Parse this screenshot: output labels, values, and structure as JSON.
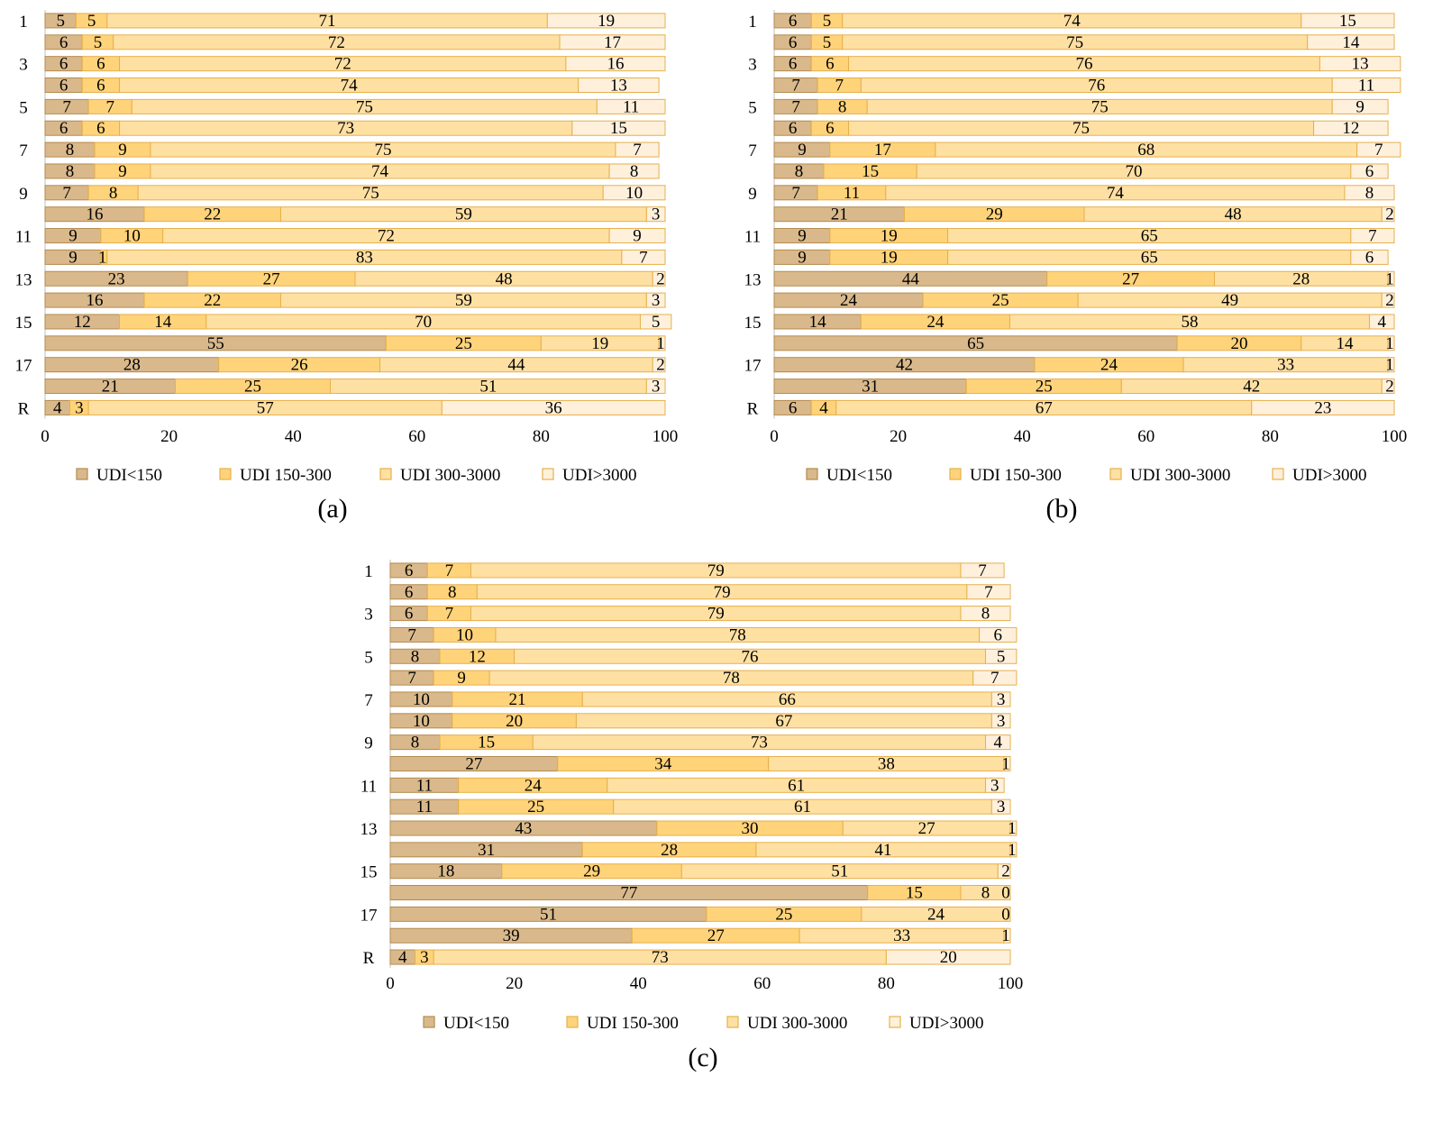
{
  "colors": {
    "UDI<150": "#d9b98b",
    "UDI 150-300": "#ffd37a",
    "UDI 300-3000": "#ffe0a3",
    "UDI>3000": "#fff0dc",
    "bar_stroke": "#e6b04a",
    "bar_stroke_dark": "#b48a4d",
    "axis": "#bfbfbf"
  },
  "chart_data": [
    {
      "type": "bar",
      "orientation": "horizontal",
      "stacked": true,
      "panel_label": "(a)",
      "categories": [
        "1",
        "",
        "3",
        "",
        "5",
        "",
        "7",
        "",
        "9",
        "",
        "11",
        "",
        "13",
        "",
        "15",
        "",
        "17",
        "",
        "R"
      ],
      "xlim": [
        0,
        100
      ],
      "xticks": [
        0,
        20,
        40,
        60,
        80,
        100
      ],
      "legend_position": "bottom",
      "series": [
        {
          "name": "UDI<150",
          "values": [
            5,
            6,
            6,
            6,
            7,
            6,
            8,
            8,
            7,
            16,
            9,
            9,
            23,
            16,
            12,
            55,
            28,
            21,
            4
          ]
        },
        {
          "name": "UDI 150-300",
          "values": [
            5,
            5,
            6,
            6,
            7,
            6,
            9,
            9,
            8,
            22,
            10,
            1,
            27,
            22,
            14,
            25,
            26,
            25,
            3
          ]
        },
        {
          "name": "UDI 300-3000",
          "values": [
            71,
            72,
            72,
            74,
            75,
            73,
            75,
            74,
            75,
            59,
            72,
            83,
            48,
            59,
            70,
            19,
            44,
            51,
            57
          ]
        },
        {
          "name": "UDI>3000",
          "values": [
            19,
            17,
            16,
            13,
            11,
            15,
            7,
            8,
            10,
            3,
            9,
            7,
            2,
            3,
            5,
            1,
            2,
            3,
            36
          ]
        }
      ]
    },
    {
      "type": "bar",
      "orientation": "horizontal",
      "stacked": true,
      "panel_label": "(b)",
      "categories": [
        "1",
        "",
        "3",
        "",
        "5",
        "",
        "7",
        "",
        "9",
        "",
        "11",
        "",
        "13",
        "",
        "15",
        "",
        "17",
        "",
        "R"
      ],
      "xlim": [
        0,
        100
      ],
      "xticks": [
        0,
        20,
        40,
        60,
        80,
        100
      ],
      "legend_position": "bottom",
      "series": [
        {
          "name": "UDI<150",
          "values": [
            6,
            6,
            6,
            7,
            7,
            6,
            9,
            8,
            7,
            21,
            9,
            9,
            44,
            24,
            14,
            65,
            42,
            31,
            6
          ]
        },
        {
          "name": "UDI 150-300",
          "values": [
            5,
            5,
            6,
            7,
            8,
            6,
            17,
            15,
            11,
            29,
            19,
            19,
            27,
            25,
            24,
            20,
            24,
            25,
            4
          ]
        },
        {
          "name": "UDI 300-3000",
          "values": [
            74,
            75,
            76,
            76,
            75,
            75,
            68,
            70,
            74,
            48,
            65,
            65,
            28,
            49,
            58,
            14,
            33,
            42,
            67
          ]
        },
        {
          "name": "UDI>3000",
          "values": [
            15,
            14,
            13,
            11,
            9,
            12,
            7,
            6,
            8,
            2,
            7,
            6,
            1,
            2,
            4,
            1,
            1,
            2,
            23
          ]
        }
      ]
    },
    {
      "type": "bar",
      "orientation": "horizontal",
      "stacked": true,
      "panel_label": "(c)",
      "categories": [
        "1",
        "",
        "3",
        "",
        "5",
        "",
        "7",
        "",
        "9",
        "",
        "11",
        "",
        "13",
        "",
        "15",
        "",
        "17",
        "",
        "R"
      ],
      "xlim": [
        0,
        100
      ],
      "xticks": [
        0,
        20,
        40,
        60,
        80,
        100
      ],
      "legend_position": "bottom",
      "series": [
        {
          "name": "UDI<150",
          "values": [
            6,
            6,
            6,
            7,
            8,
            7,
            10,
            10,
            8,
            27,
            11,
            11,
            43,
            31,
            18,
            77,
            51,
            39,
            4
          ]
        },
        {
          "name": "UDI 150-300",
          "values": [
            7,
            8,
            7,
            10,
            12,
            9,
            21,
            20,
            15,
            34,
            24,
            25,
            30,
            28,
            29,
            15,
            25,
            27,
            3
          ]
        },
        {
          "name": "UDI 300-3000",
          "values": [
            79,
            79,
            79,
            78,
            76,
            78,
            66,
            67,
            73,
            38,
            61,
            61,
            27,
            41,
            51,
            8,
            24,
            33,
            73
          ]
        },
        {
          "name": "UDI>3000",
          "values": [
            7,
            7,
            8,
            6,
            5,
            7,
            3,
            3,
            4,
            1,
            3,
            3,
            1,
            1,
            2,
            0,
            0,
            1,
            20
          ]
        }
      ]
    }
  ]
}
